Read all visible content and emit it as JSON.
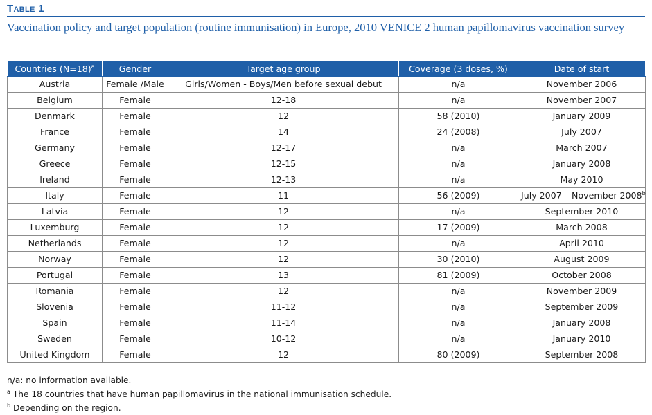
{
  "header": {
    "label": "Table 1",
    "title": "Vaccination policy and target population (routine immunisation) in Europe, 2010 VENICE 2 human papillomavirus vaccination survey"
  },
  "colors": {
    "accent": "#1f5fa8",
    "rule": "#8c8c8c"
  },
  "table": {
    "columns": [
      {
        "label": "Countries (N=18)",
        "sup": "a"
      },
      {
        "label": "Gender",
        "sup": ""
      },
      {
        "label": "Target age group",
        "sup": ""
      },
      {
        "label": "Coverage (3 doses, %)",
        "sup": ""
      },
      {
        "label": "Date of start",
        "sup": ""
      }
    ],
    "rows": [
      {
        "country": "Austria",
        "gender": "Female /Male",
        "age": "Girls/Women - Boys/Men before sexual debut",
        "coverage": "n/a",
        "start": "November 2006",
        "start_sup": ""
      },
      {
        "country": "Belgium",
        "gender": "Female",
        "age": "12-18",
        "coverage": "n/a",
        "start": "November 2007",
        "start_sup": ""
      },
      {
        "country": "Denmark",
        "gender": "Female",
        "age": "12",
        "coverage": "58 (2010)",
        "start": "January 2009",
        "start_sup": ""
      },
      {
        "country": "France",
        "gender": "Female",
        "age": "14",
        "coverage": "24 (2008)",
        "start": "July 2007",
        "start_sup": ""
      },
      {
        "country": "Germany",
        "gender": "Female",
        "age": "12-17",
        "coverage": "n/a",
        "start": "March 2007",
        "start_sup": ""
      },
      {
        "country": "Greece",
        "gender": "Female",
        "age": "12-15",
        "coverage": "n/a",
        "start": "January 2008",
        "start_sup": ""
      },
      {
        "country": "Ireland",
        "gender": "Female",
        "age": "12-13",
        "coverage": "n/a",
        "start": "May 2010",
        "start_sup": ""
      },
      {
        "country": "Italy",
        "gender": "Female",
        "age": "11",
        "coverage": "56 (2009)",
        "start": "July 2007 – November 2008",
        "start_sup": "b"
      },
      {
        "country": "Latvia",
        "gender": "Female",
        "age": "12",
        "coverage": "n/a",
        "start": "September 2010",
        "start_sup": ""
      },
      {
        "country": "Luxemburg",
        "gender": "Female",
        "age": "12",
        "coverage": "17 (2009)",
        "start": "March 2008",
        "start_sup": ""
      },
      {
        "country": "Netherlands",
        "gender": "Female",
        "age": "12",
        "coverage": "n/a",
        "start": "April 2010",
        "start_sup": ""
      },
      {
        "country": "Norway",
        "gender": "Female",
        "age": "12",
        "coverage": "30 (2010)",
        "start": "August 2009",
        "start_sup": ""
      },
      {
        "country": "Portugal",
        "gender": "Female",
        "age": "13",
        "coverage": "81 (2009)",
        "start": "October 2008",
        "start_sup": ""
      },
      {
        "country": "Romania",
        "gender": "Female",
        "age": "12",
        "coverage": "n/a",
        "start": "November 2009",
        "start_sup": ""
      },
      {
        "country": "Slovenia",
        "gender": "Female",
        "age": "11-12",
        "coverage": "n/a",
        "start": "September 2009",
        "start_sup": ""
      },
      {
        "country": "Spain",
        "gender": "Female",
        "age": "11-14",
        "coverage": "n/a",
        "start": "January 2008",
        "start_sup": ""
      },
      {
        "country": "Sweden",
        "gender": "Female",
        "age": "10-12",
        "coverage": "n/a",
        "start": "January 2010",
        "start_sup": ""
      },
      {
        "country": "United Kingdom",
        "gender": "Female",
        "age": "12",
        "coverage": "80 (2009)",
        "start": "September 2008",
        "start_sup": ""
      }
    ]
  },
  "footnotes": [
    {
      "mark": "",
      "text": "n/a: no information available."
    },
    {
      "mark": "a",
      "text": "The 18 countries that have human papillomavirus in the national immunisation schedule."
    },
    {
      "mark": "b",
      "text": "Depending on the region."
    }
  ]
}
